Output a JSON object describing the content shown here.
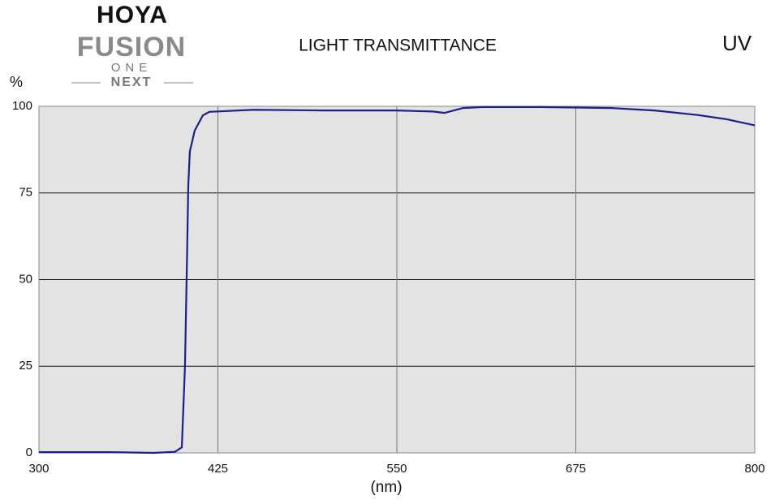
{
  "logo": {
    "brand": "HOYA",
    "line1": "FUSION",
    "line2": "ONE",
    "line3": "NEXT"
  },
  "chart_data": {
    "type": "line",
    "title": "LIGHT TRANSMITTANCE",
    "label": "UV",
    "y_label": "%",
    "x_label": "(nm)",
    "x": [
      300,
      350,
      380,
      395,
      399.8,
      402,
      403.5,
      404.3,
      405.4,
      408.8,
      414.5,
      419,
      450,
      500,
      550,
      575,
      583.4,
      596,
      610,
      650,
      700,
      730,
      760,
      780,
      800
    ],
    "series": [
      {
        "name": "UV",
        "color": "#1b1f8c",
        "values": [
          0.2,
          0.2,
          0,
          0.3,
          1.6,
          25,
          58,
          77,
          87,
          93,
          97.4,
          98.4,
          99,
          98.8,
          98.8,
          98.5,
          98.1,
          99.5,
          99.8,
          99.8,
          99.5,
          98.8,
          97.5,
          96.3,
          94.5
        ]
      }
    ],
    "xlim": [
      300,
      800
    ],
    "xticks": [
      300,
      425,
      550,
      675,
      800
    ],
    "ylim": [
      0,
      100
    ],
    "yticks": [
      0,
      25,
      50,
      75,
      100
    ],
    "grid": true
  }
}
